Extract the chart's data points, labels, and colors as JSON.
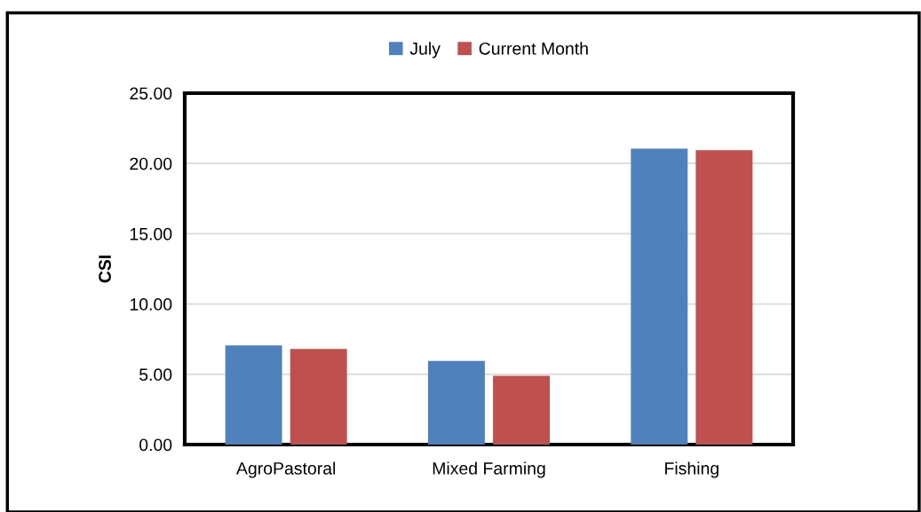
{
  "chart_data": {
    "type": "bar",
    "ylabel": "CSI",
    "categories": [
      "AgroPastoral",
      "Mixed Farming",
      "Fishing"
    ],
    "series": [
      {
        "name": "July",
        "color": "#4f81bd",
        "values": [
          7.05,
          5.95,
          21.05
        ]
      },
      {
        "name": "Current Month",
        "color": "#c0504d",
        "values": [
          6.8,
          4.9,
          20.95
        ]
      }
    ],
    "ylim": [
      0,
      25
    ],
    "yticks": [
      {
        "value": 0,
        "label": "0.00"
      },
      {
        "value": 5,
        "label": "5.00"
      },
      {
        "value": 10,
        "label": "10.00"
      },
      {
        "value": 15,
        "label": "15.00"
      },
      {
        "value": 20,
        "label": "20.00"
      },
      {
        "value": 25,
        "label": "25.00"
      }
    ],
    "grid": "y",
    "legend": "top"
  }
}
